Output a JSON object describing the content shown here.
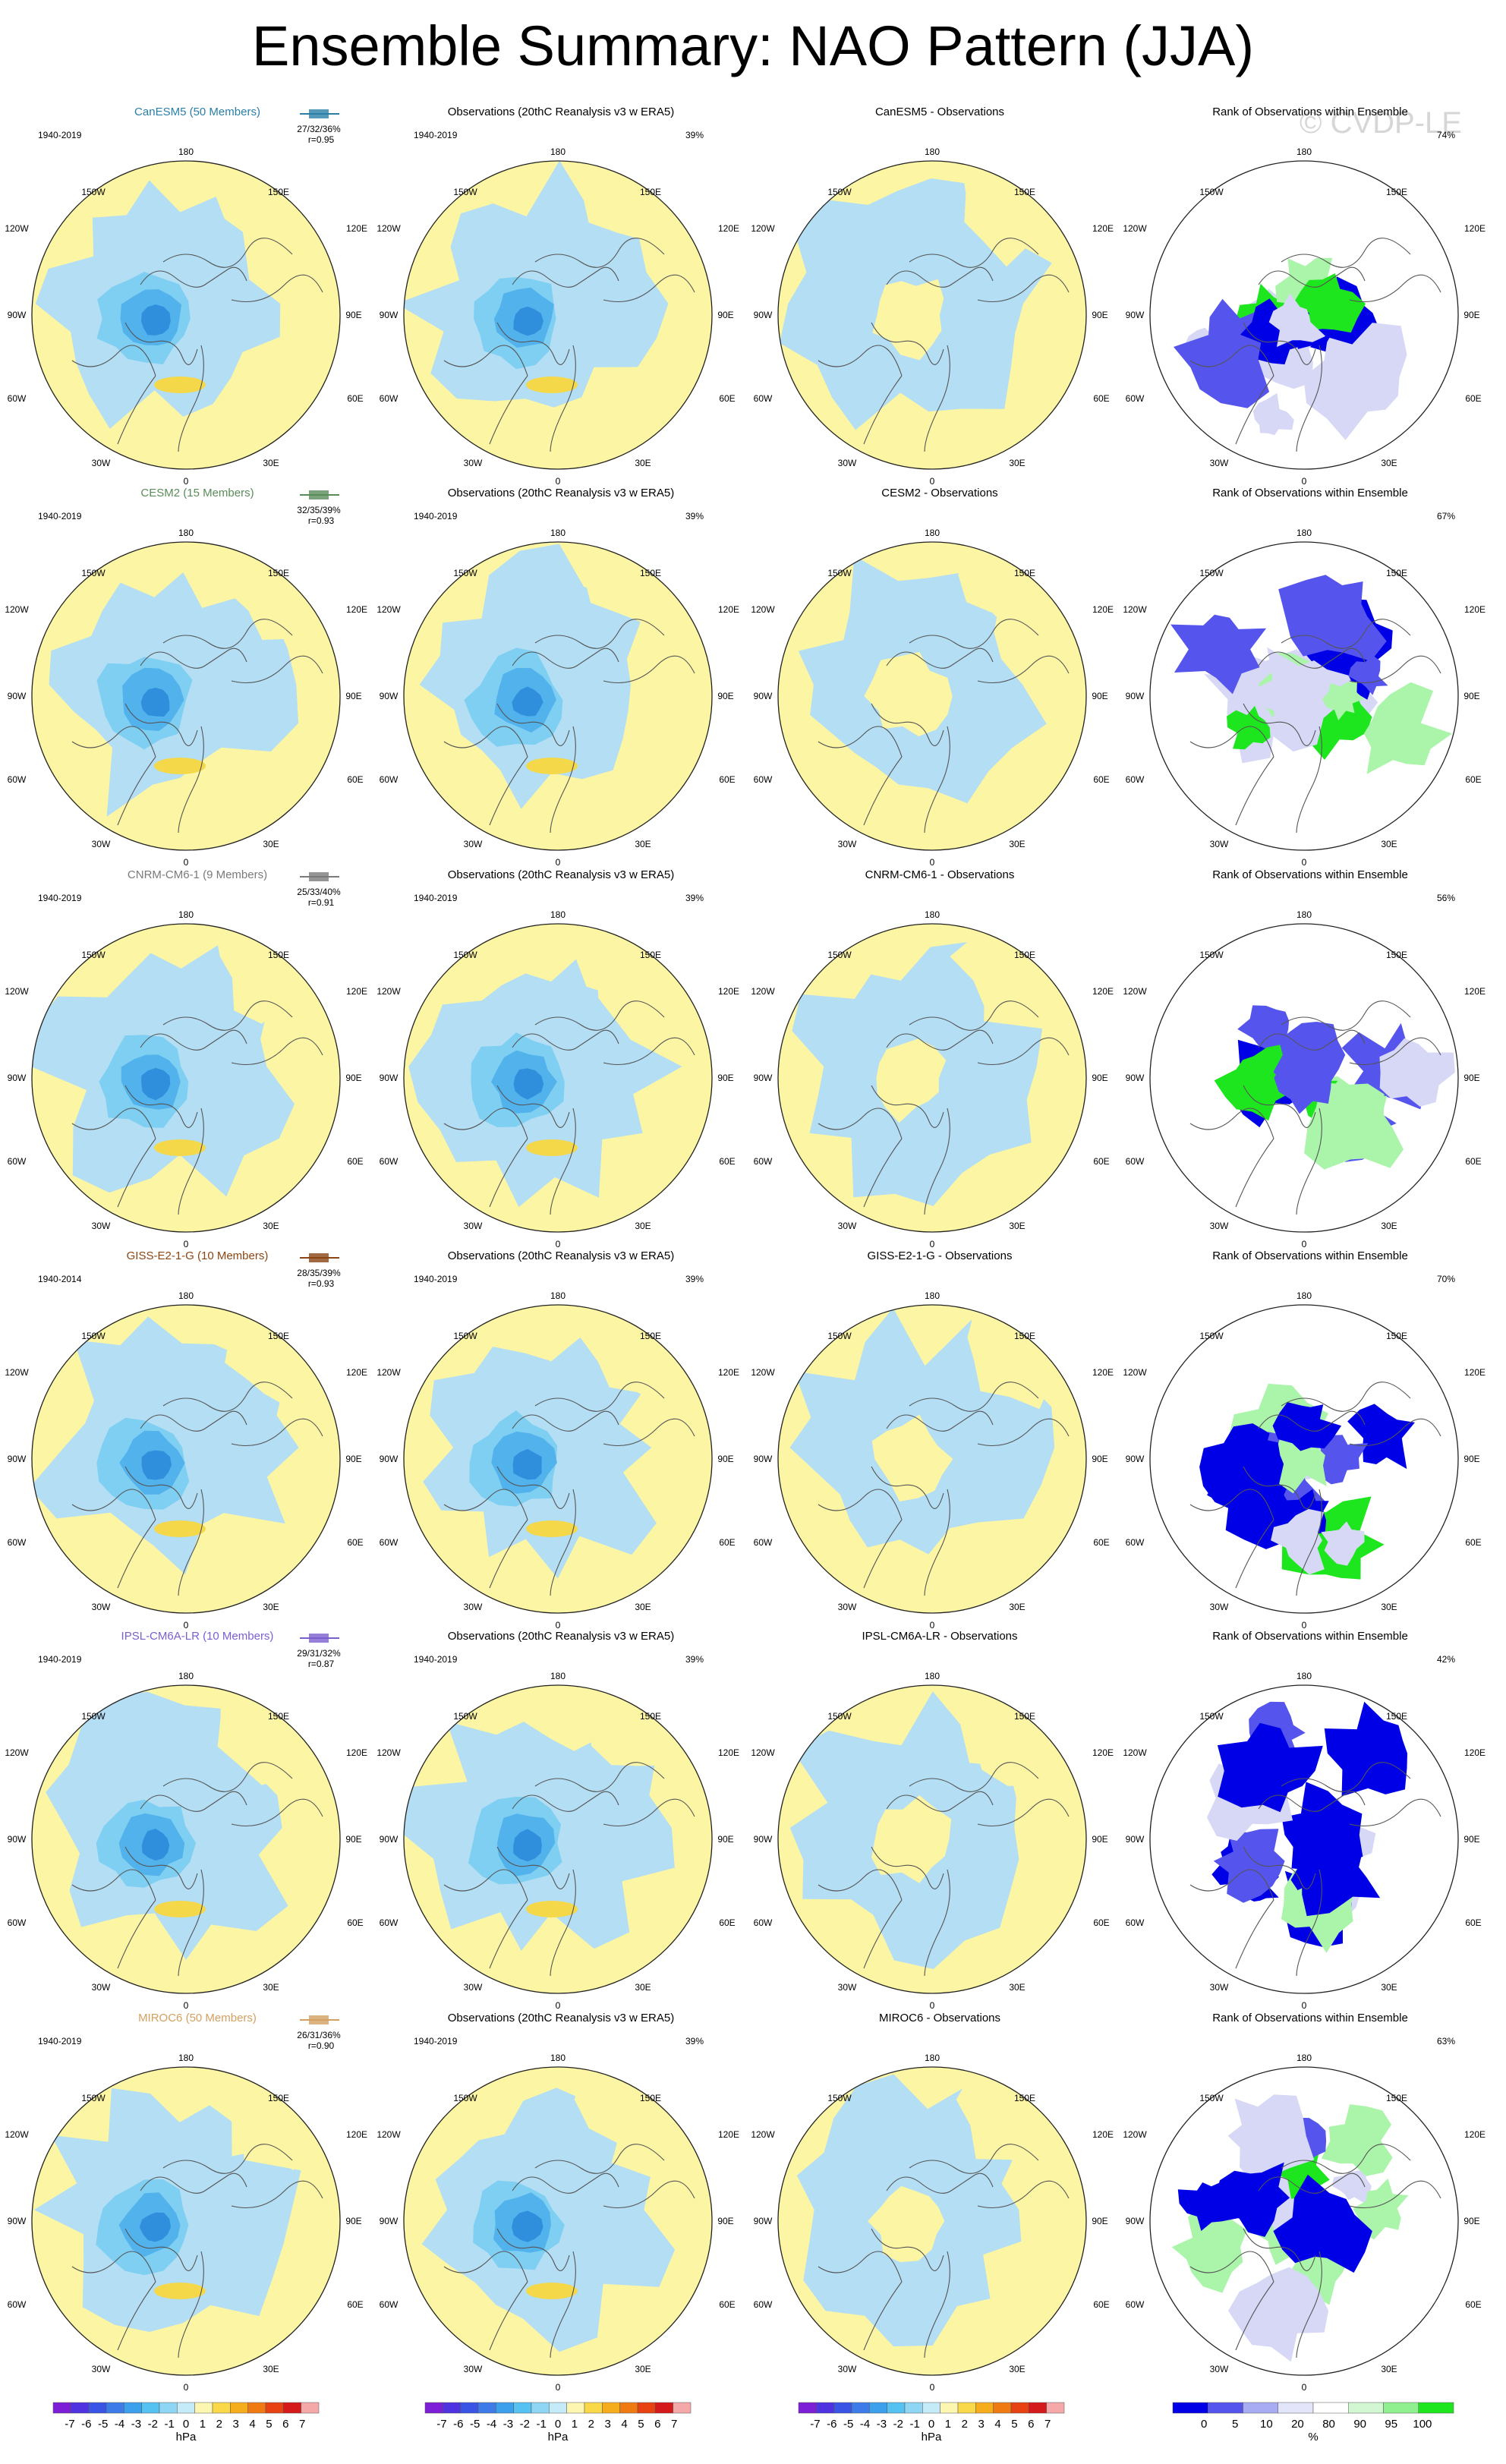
{
  "title": "Ensemble Summary: NAO Pattern (JJA)",
  "watermark": "© CVDP-LE",
  "colors": {
    "ocean_blue": "#b3def4",
    "land_yellow": "#fcf5a4",
    "neg1": "#7fcff2",
    "neg2": "#52b2ec",
    "neg3": "#2f8fdc",
    "pos1": "#f4d84a",
    "pos2": "#f2b51a",
    "rank_low": "#0000e6",
    "rank_mid": "#d6d8f6",
    "rank_high": "#1ee61e",
    "rank_high2": "#aaf5aa"
  },
  "rows": [
    {
      "model": {
        "title": "CanESM5 (50 Members)",
        "title_color": "#2b7fa6",
        "period": "1940-2019",
        "stats": "27/32/36%",
        "r": "r=0.95"
      },
      "obs": {
        "title": "Observations (20thC Reanalysis v3 w ERA5)",
        "period": "1940-2019",
        "pct": "39%"
      },
      "diff": {
        "title": "CanESM5 - Observations"
      },
      "rank": {
        "title": "Rank of Observations within Ensemble",
        "pct": "74%"
      }
    },
    {
      "model": {
        "title": "CESM2 (15 Members)",
        "title_color": "#5a8c5a",
        "period": "1940-2019",
        "stats": "32/35/39%",
        "r": "r=0.93"
      },
      "obs": {
        "title": "Observations (20thC Reanalysis v3 w ERA5)",
        "period": "1940-2019",
        "pct": "39%"
      },
      "diff": {
        "title": "CESM2 - Observations"
      },
      "rank": {
        "title": "Rank of Observations within Ensemble",
        "pct": "67%"
      }
    },
    {
      "model": {
        "title": "CNRM-CM6-1 (9 Members)",
        "title_color": "#7a7a7a",
        "period": "1940-2019",
        "stats": "25/33/40%",
        "r": "r=0.91"
      },
      "obs": {
        "title": "Observations (20thC Reanalysis v3 w ERA5)",
        "period": "1940-2019",
        "pct": "39%"
      },
      "diff": {
        "title": "CNRM-CM6-1 - Observations"
      },
      "rank": {
        "title": "Rank of Observations within Ensemble",
        "pct": "56%"
      }
    },
    {
      "model": {
        "title": "GISS-E2-1-G (10 Members)",
        "title_color": "#8b4513",
        "period": "1940-2014",
        "stats": "28/35/39%",
        "r": "r=0.93"
      },
      "obs": {
        "title": "Observations (20thC Reanalysis v3 w ERA5)",
        "period": "1940-2019",
        "pct": "39%"
      },
      "diff": {
        "title": "GISS-E2-1-G - Observations"
      },
      "rank": {
        "title": "Rank of Observations within Ensemble",
        "pct": "70%"
      }
    },
    {
      "model": {
        "title": "IPSL-CM6A-LR (10 Members)",
        "title_color": "#7b5fd0",
        "period": "1940-2019",
        "stats": "29/31/32%",
        "r": "r=0.87"
      },
      "obs": {
        "title": "Observations (20thC Reanalysis v3 w ERA5)",
        "period": "1940-2019",
        "pct": "39%"
      },
      "diff": {
        "title": "IPSL-CM6A-LR - Observations"
      },
      "rank": {
        "title": "Rank of Observations within Ensemble",
        "pct": "42%"
      }
    },
    {
      "model": {
        "title": "MIROC6 (50 Members)",
        "title_color": "#d2a060",
        "period": "1940-2019",
        "stats": "26/31/36%",
        "r": "r=0.90"
      },
      "obs": {
        "title": "Observations (20thC Reanalysis v3 w ERA5)",
        "period": "1940-2019",
        "pct": "39%"
      },
      "diff": {
        "title": "MIROC6 - Observations"
      },
      "rank": {
        "title": "Rank of Observations within Ensemble",
        "pct": "63%"
      }
    }
  ],
  "map_labels": {
    "top": "180",
    "top_left": "150W",
    "top_right": "150E",
    "upper_left": "120W",
    "upper_right": "120E",
    "left": "90W",
    "right": "90E",
    "lower_left": "60W",
    "lower_right": "60E",
    "bottom_left": "30W",
    "bottom_right": "30E",
    "bottom": "0"
  },
  "colorbar_hpa": {
    "labels": [
      "-7",
      "-6",
      "-5",
      "-4",
      "-3",
      "-2",
      "-1",
      "0",
      "1",
      "2",
      "3",
      "4",
      "5",
      "6",
      "7"
    ],
    "colors": [
      "#7c1fd6",
      "#4f32e0",
      "#3a55e6",
      "#3d7ce8",
      "#3ca0ec",
      "#55c2f2",
      "#8fd6f4",
      "#c6ebf8",
      "#fdf6b0",
      "#f9d84a",
      "#f5ad1e",
      "#f07a12",
      "#e84212",
      "#d41a1a",
      "#f4a8a8"
    ],
    "unit": "hPa"
  },
  "colorbar_rank": {
    "labels": [
      "0",
      "5",
      "10",
      "20",
      "80",
      "90",
      "95",
      "100"
    ],
    "colors": [
      "#0000e6",
      "#5555ee",
      "#a8acf2",
      "#e3e5fa",
      "#ffffff",
      "#d2f7d2",
      "#90f090",
      "#1ee61e"
    ],
    "unit": "%"
  }
}
